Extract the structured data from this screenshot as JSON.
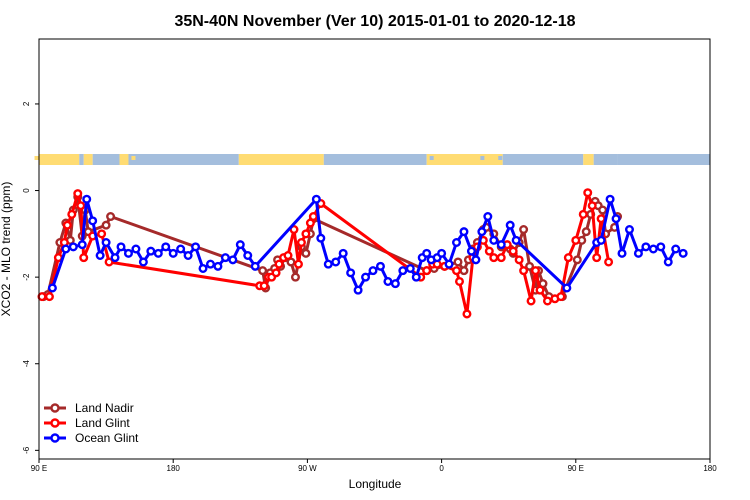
{
  "chart_data": {
    "type": "line",
    "title": "35N-40N November (Ver 10)   2015-01-01 to 2020-12-18",
    "xlabel": "Longitude",
    "ylabel": "XCO2 - MLO trend (ppm)",
    "x_ticks": [
      {
        "value": 90,
        "label": "90 E"
      },
      {
        "value": 180,
        "label": "180"
      },
      {
        "value": 270,
        "label": "90 W"
      },
      {
        "value": 360,
        "label": "0"
      },
      {
        "value": 450,
        "label": "90 E"
      },
      {
        "value": 540,
        "label": "180"
      }
    ],
    "y_ticks": [
      {
        "value": 2,
        "label": "2"
      },
      {
        "value": 0,
        "label": "0"
      },
      {
        "value": -2,
        "label": "-2"
      },
      {
        "value": -4,
        "label": "-4"
      },
      {
        "value": -6,
        "label": "-6"
      }
    ],
    "xlim": [
      90,
      540
    ],
    "ylim": [
      -6.2,
      3.5
    ],
    "legend_position": "bottom-left",
    "series": [
      {
        "name": "Land Nadir",
        "color": "#a52a2a",
        "points": [
          [
            93,
            -2.45
          ],
          [
            96,
            -2.4
          ],
          [
            104,
            -1.2
          ],
          [
            108,
            -0.75
          ],
          [
            111,
            -1.15
          ],
          [
            113,
            -0.45
          ],
          [
            116,
            -0.15
          ],
          [
            119,
            -1.05
          ],
          [
            121,
            -0.45
          ],
          [
            123,
            -0.95
          ],
          [
            135,
            -0.8
          ],
          [
            138,
            -0.6
          ],
          [
            240,
            -1.85
          ],
          [
            242,
            -2.25
          ],
          [
            245,
            -1.9
          ],
          [
            248,
            -1.8
          ],
          [
            250,
            -1.6
          ],
          [
            252,
            -1.75
          ],
          [
            255,
            -1.55
          ],
          [
            259,
            -1.65
          ],
          [
            262,
            -2.0
          ],
          [
            266,
            -1.3
          ],
          [
            269,
            -1.45
          ],
          [
            272,
            -1.0
          ],
          [
            274,
            -0.65
          ],
          [
            350,
            -1.85
          ],
          [
            355,
            -1.8
          ],
          [
            362,
            -1.75
          ],
          [
            371,
            -1.65
          ],
          [
            375,
            -1.85
          ],
          [
            378,
            -1.6
          ],
          [
            381,
            -1.35
          ],
          [
            384,
            -1.2
          ],
          [
            388,
            -0.9
          ],
          [
            390,
            -0.85
          ],
          [
            395,
            -1.0
          ],
          [
            400,
            -1.3
          ],
          [
            406,
            -1.35
          ],
          [
            408,
            -1.45
          ],
          [
            412,
            -1.2
          ],
          [
            415,
            -0.9
          ],
          [
            419,
            -1.75
          ],
          [
            423,
            -2.3
          ],
          [
            425,
            -1.85
          ],
          [
            428,
            -2.15
          ],
          [
            432,
            -2.45
          ],
          [
            441,
            -2.45
          ],
          [
            451,
            -1.6
          ],
          [
            454,
            -1.15
          ],
          [
            457,
            -0.95
          ],
          [
            460,
            -0.55
          ],
          [
            463,
            -0.25
          ],
          [
            465,
            -0.35
          ],
          [
            468,
            -0.45
          ],
          [
            470,
            -1.0
          ],
          [
            476,
            -0.85
          ],
          [
            478,
            -0.6
          ]
        ]
      },
      {
        "name": "Land Glint",
        "color": "#ff0000",
        "points": [
          [
            92,
            -2.45
          ],
          [
            97,
            -2.45
          ],
          [
            103,
            -1.55
          ],
          [
            107,
            -1.2
          ],
          [
            109,
            -0.8
          ],
          [
            112,
            -0.55
          ],
          [
            116,
            -0.07
          ],
          [
            118,
            -0.35
          ],
          [
            120,
            -1.55
          ],
          [
            126,
            -1.05
          ],
          [
            132,
            -1.0
          ],
          [
            137,
            -1.65
          ],
          [
            238,
            -2.2
          ],
          [
            241,
            -2.2
          ],
          [
            244,
            -2.0
          ],
          [
            246,
            -2.0
          ],
          [
            249,
            -1.9
          ],
          [
            251,
            -1.7
          ],
          [
            254,
            -1.55
          ],
          [
            257,
            -1.5
          ],
          [
            261,
            -0.9
          ],
          [
            264,
            -1.7
          ],
          [
            266,
            -1.2
          ],
          [
            269,
            -1.0
          ],
          [
            272,
            -0.75
          ],
          [
            274,
            -0.6
          ],
          [
            279,
            -0.3
          ],
          [
            346,
            -2.0
          ],
          [
            350,
            -1.85
          ],
          [
            354,
            -1.7
          ],
          [
            357,
            -1.7
          ],
          [
            362,
            -1.75
          ],
          [
            370,
            -1.85
          ],
          [
            372,
            -2.1
          ],
          [
            377,
            -2.85
          ],
          [
            381,
            -1.55
          ],
          [
            384,
            -1.3
          ],
          [
            388,
            -1.15
          ],
          [
            392,
            -1.4
          ],
          [
            395,
            -1.55
          ],
          [
            400,
            -1.55
          ],
          [
            404,
            -1.25
          ],
          [
            408,
            -1.4
          ],
          [
            412,
            -1.6
          ],
          [
            415,
            -1.85
          ],
          [
            420,
            -2.55
          ],
          [
            423,
            -1.85
          ],
          [
            426,
            -2.3
          ],
          [
            431,
            -2.55
          ],
          [
            436,
            -2.5
          ],
          [
            440,
            -2.45
          ],
          [
            445,
            -1.55
          ],
          [
            450,
            -1.15
          ],
          [
            455,
            -0.55
          ],
          [
            458,
            -0.05
          ],
          [
            461,
            -0.35
          ],
          [
            464,
            -1.55
          ],
          [
            467,
            -0.65
          ],
          [
            472,
            -1.65
          ]
        ]
      },
      {
        "name": "Ocean Glint",
        "color": "#0000ff",
        "points": [
          [
            99,
            -2.25
          ],
          [
            108,
            -1.35
          ],
          [
            113,
            -1.3
          ],
          [
            119,
            -1.25
          ],
          [
            122,
            -0.2
          ],
          [
            126,
            -0.7
          ],
          [
            131,
            -1.5
          ],
          [
            135,
            -1.2
          ],
          [
            141,
            -1.55
          ],
          [
            145,
            -1.3
          ],
          [
            150,
            -1.45
          ],
          [
            155,
            -1.35
          ],
          [
            160,
            -1.65
          ],
          [
            165,
            -1.4
          ],
          [
            170,
            -1.45
          ],
          [
            175,
            -1.3
          ],
          [
            180,
            -1.45
          ],
          [
            185,
            -1.35
          ],
          [
            190,
            -1.5
          ],
          [
            195,
            -1.3
          ],
          [
            200,
            -1.8
          ],
          [
            205,
            -1.7
          ],
          [
            210,
            -1.75
          ],
          [
            215,
            -1.55
          ],
          [
            220,
            -1.6
          ],
          [
            225,
            -1.25
          ],
          [
            230,
            -1.5
          ],
          [
            235,
            -1.75
          ],
          [
            276,
            -0.2
          ],
          [
            279,
            -1.1
          ],
          [
            284,
            -1.7
          ],
          [
            289,
            -1.65
          ],
          [
            294,
            -1.45
          ],
          [
            299,
            -1.9
          ],
          [
            304,
            -2.3
          ],
          [
            309,
            -2.0
          ],
          [
            314,
            -1.85
          ],
          [
            319,
            -1.75
          ],
          [
            324,
            -2.1
          ],
          [
            329,
            -2.15
          ],
          [
            334,
            -1.85
          ],
          [
            339,
            -1.8
          ],
          [
            343,
            -2.0
          ],
          [
            347,
            -1.55
          ],
          [
            350,
            -1.45
          ],
          [
            353,
            -1.6
          ],
          [
            357,
            -1.55
          ],
          [
            360,
            -1.45
          ],
          [
            365,
            -1.7
          ],
          [
            370,
            -1.2
          ],
          [
            375,
            -0.95
          ],
          [
            380,
            -1.4
          ],
          [
            383,
            -1.6
          ],
          [
            387,
            -0.95
          ],
          [
            391,
            -0.6
          ],
          [
            395,
            -1.15
          ],
          [
            400,
            -1.25
          ],
          [
            406,
            -0.8
          ],
          [
            410,
            -1.15
          ],
          [
            444,
            -2.25
          ],
          [
            464,
            -1.2
          ],
          [
            467,
            -1.15
          ],
          [
            473,
            -0.2
          ],
          [
            477,
            -0.65
          ],
          [
            481,
            -1.45
          ],
          [
            486,
            -0.9
          ],
          [
            492,
            -1.45
          ],
          [
            497,
            -1.3
          ],
          [
            502,
            -1.35
          ],
          [
            507,
            -1.3
          ],
          [
            512,
            -1.65
          ],
          [
            517,
            -1.35
          ],
          [
            522,
            -1.45
          ]
        ]
      }
    ],
    "map_strip": {
      "land_color": "#ffdc73",
      "ocean_color": "#a4bedd"
    }
  }
}
